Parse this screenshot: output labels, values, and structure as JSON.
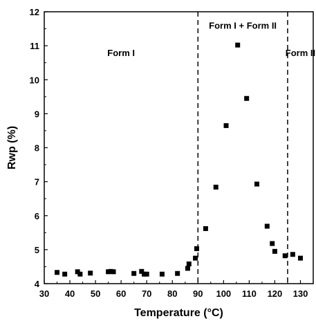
{
  "chart_data": {
    "type": "scatter",
    "title": "",
    "xlabel": "Temperature (°C)",
    "ylabel": "Rwp (%)",
    "xlim": [
      30,
      135
    ],
    "ylim": [
      4,
      12
    ],
    "xticks": [
      30,
      40,
      50,
      60,
      70,
      80,
      90,
      100,
      110,
      120,
      130
    ],
    "yticks": [
      4,
      5,
      6,
      7,
      8,
      9,
      10,
      11,
      12
    ],
    "grid": false,
    "marker": "filled-square",
    "marker_color": "#000000",
    "points": [
      {
        "x": 35,
        "y": 4.33
      },
      {
        "x": 38,
        "y": 4.28
      },
      {
        "x": 43,
        "y": 4.35
      },
      {
        "x": 44,
        "y": 4.28
      },
      {
        "x": 48,
        "y": 4.31
      },
      {
        "x": 55,
        "y": 4.35
      },
      {
        "x": 56,
        "y": 4.36
      },
      {
        "x": 57,
        "y": 4.35
      },
      {
        "x": 65,
        "y": 4.3
      },
      {
        "x": 68,
        "y": 4.36
      },
      {
        "x": 69,
        "y": 4.28
      },
      {
        "x": 70,
        "y": 4.28
      },
      {
        "x": 76,
        "y": 4.28
      },
      {
        "x": 82,
        "y": 4.3
      },
      {
        "x": 86,
        "y": 4.45
      },
      {
        "x": 86.5,
        "y": 4.58
      },
      {
        "x": 89,
        "y": 4.75
      },
      {
        "x": 89.5,
        "y": 5.03
      },
      {
        "x": 93,
        "y": 5.62
      },
      {
        "x": 97,
        "y": 6.84
      },
      {
        "x": 101,
        "y": 8.65
      },
      {
        "x": 105.5,
        "y": 11.02
      },
      {
        "x": 109,
        "y": 9.45
      },
      {
        "x": 113,
        "y": 6.93
      },
      {
        "x": 117,
        "y": 5.69
      },
      {
        "x": 119,
        "y": 5.18
      },
      {
        "x": 120,
        "y": 4.95
      },
      {
        "x": 124,
        "y": 4.82
      },
      {
        "x": 127,
        "y": 4.86
      },
      {
        "x": 130,
        "y": 4.75
      }
    ],
    "vlines": [
      {
        "x": 90,
        "style": "dashed"
      },
      {
        "x": 125,
        "style": "dashed"
      }
    ],
    "annotations": [
      {
        "text": "Form I",
        "x": 60,
        "y": 10.7
      },
      {
        "text": "Form I + Form II",
        "x": 107.5,
        "y": 11.5
      },
      {
        "text": "Form II",
        "x": 130,
        "y": 10.7
      }
    ]
  }
}
